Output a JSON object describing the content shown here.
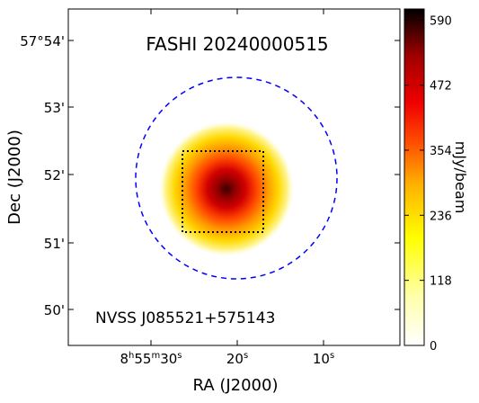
{
  "chart_data": {
    "type": "heatmap",
    "title": "FASHI 20240000515",
    "annotation": "NVSS J085521+575143",
    "xlabel": "RA (J2000)",
    "ylabel": "Dec (J2000)",
    "x_ticks": [
      {
        "value_s": 30,
        "text": "8h55m30s"
      },
      {
        "value_s": 20,
        "text": "20s"
      },
      {
        "value_s": 10,
        "text": "10s"
      }
    ],
    "x_tick_parts": {
      "t0": {
        "h": "8",
        "m": "55",
        "s": "30"
      },
      "t1": {
        "s": "20"
      },
      "t2": {
        "s": "10"
      }
    },
    "y_ticks": [
      {
        "value_arcmin": 54,
        "text": "57°54'"
      },
      {
        "value_arcmin": 53,
        "text": "53'"
      },
      {
        "value_arcmin": 52,
        "text": "52'"
      },
      {
        "value_arcmin": 51,
        "text": "51'"
      },
      {
        "value_arcmin": 50,
        "text": "50'"
      }
    ],
    "colorbar": {
      "label": "mJy/beam",
      "min": 0,
      "max": 610,
      "ticks": [
        "0",
        "118",
        "236",
        "354",
        "472",
        "590"
      ],
      "tick_values": [
        0,
        118,
        236,
        354,
        472,
        590
      ],
      "colormap": "hot_r"
    },
    "source": {
      "peak_mJy_beam": 610,
      "center_ra_s": 21.5,
      "center_dec_arcmin": 51.75
    },
    "beam_circle": {
      "style": "dashed",
      "color": "#0000ff"
    },
    "box": {
      "style": "dotted",
      "color": "#000000"
    },
    "grid": false
  }
}
